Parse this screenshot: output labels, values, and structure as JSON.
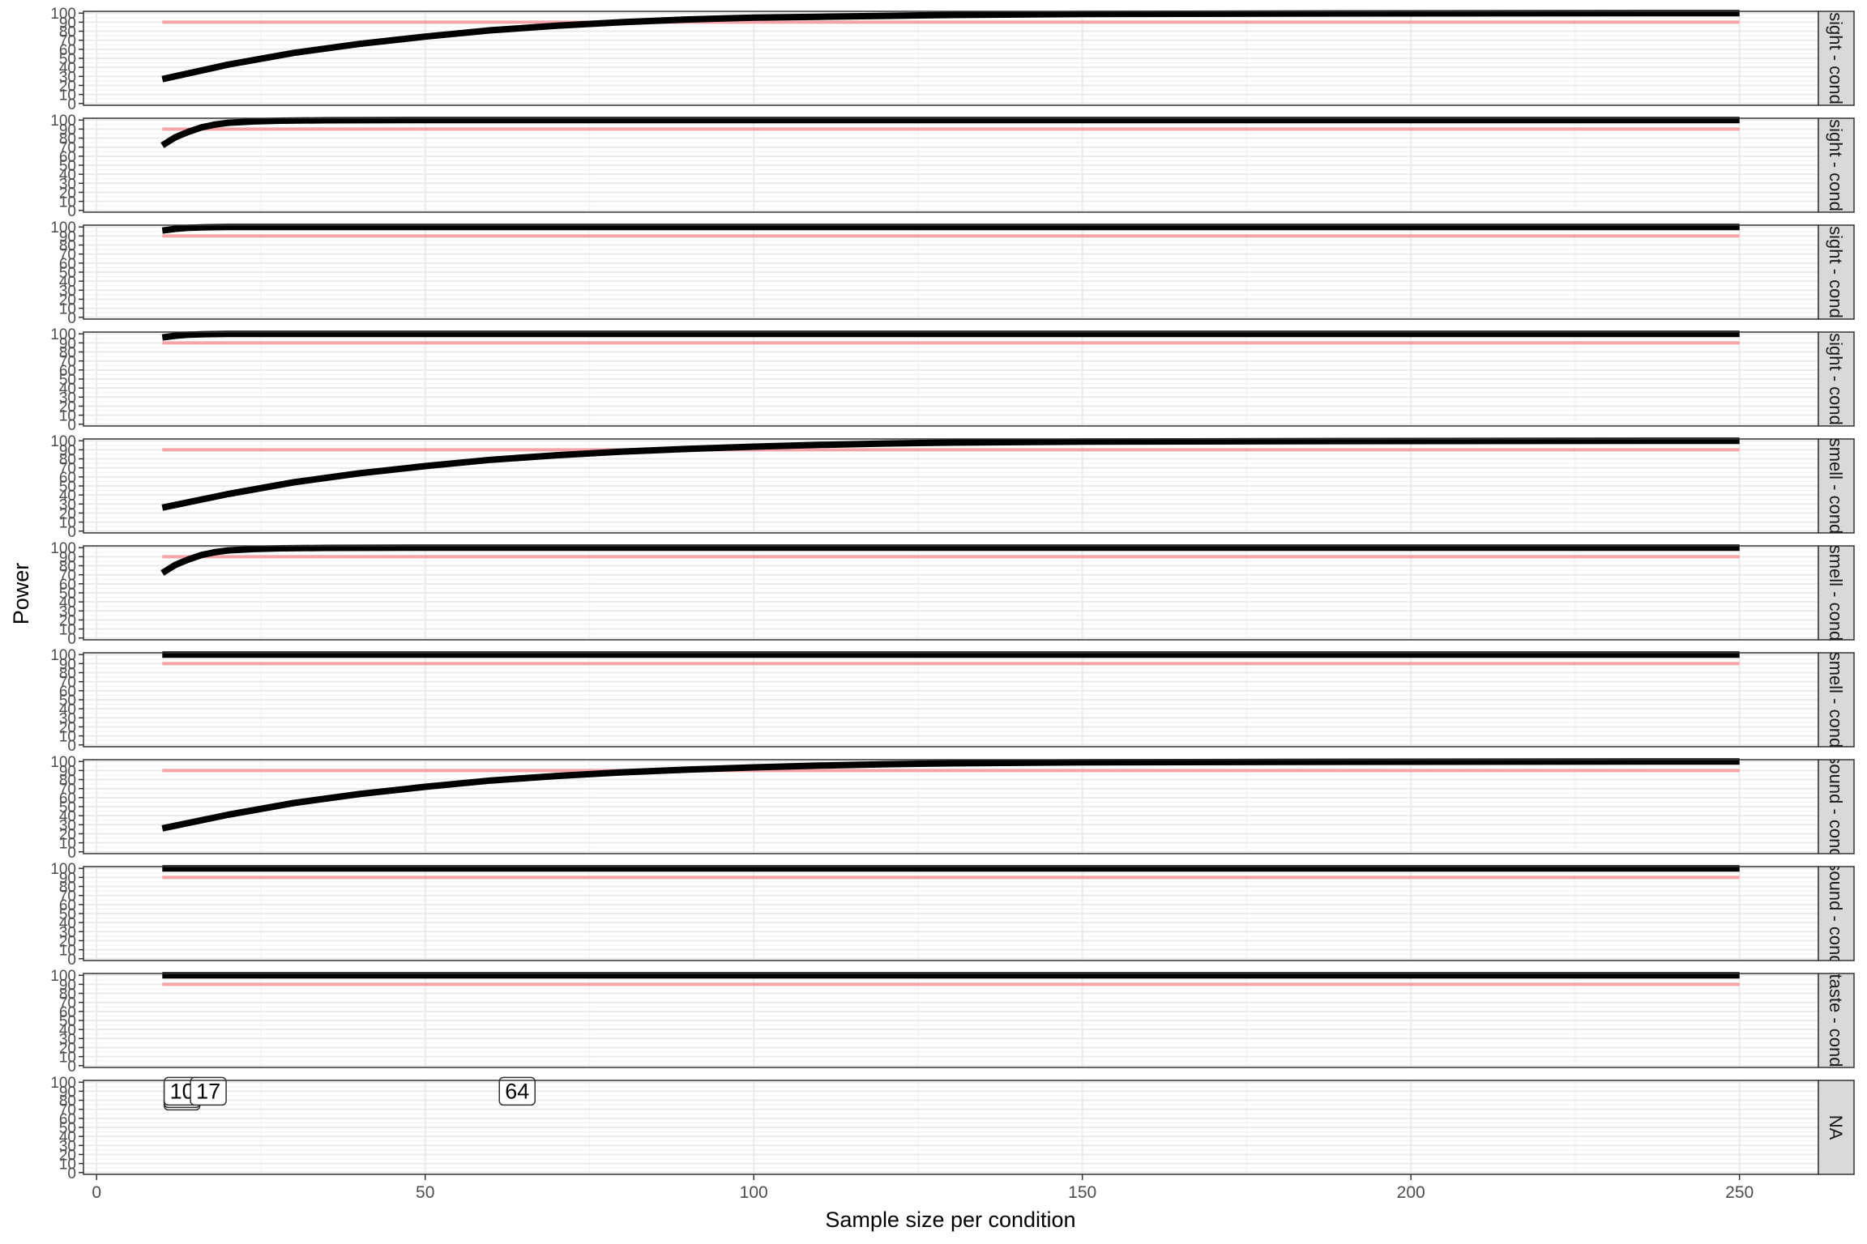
{
  "chart_data": {
    "type": "line",
    "title": "",
    "xlabel": "Sample size per condition",
    "ylabel": "Power",
    "xlim": [
      -2,
      262
    ],
    "ylim": [
      -2,
      102
    ],
    "x_ticks": [
      0,
      50,
      100,
      150,
      200,
      250
    ],
    "y_ticks": [
      0,
      10,
      20,
      30,
      40,
      50,
      60,
      70,
      80,
      90,
      100
    ],
    "grid": true,
    "colors": {
      "power_curve": "#000000",
      "target_line": "#f4a4a9",
      "strip_fill": "#d9d9d9",
      "panel_border": "#333333",
      "major_grid": "#ebebeb",
      "minor_grid": "#f2f2f2",
      "label_box_stroke": "#333333"
    },
    "target_power": 90,
    "x_range": [
      10,
      250
    ],
    "panels": [
      {
        "strip": "sight - cond",
        "curve": [
          [
            10,
            27
          ],
          [
            20,
            43
          ],
          [
            30,
            56
          ],
          [
            40,
            66
          ],
          [
            50,
            74
          ],
          [
            60,
            81
          ],
          [
            70,
            86
          ],
          [
            80,
            90
          ],
          [
            90,
            93
          ],
          [
            100,
            95
          ],
          [
            110,
            96
          ],
          [
            120,
            97
          ],
          [
            130,
            98
          ],
          [
            150,
            99
          ],
          [
            180,
            99.6
          ],
          [
            250,
            100
          ]
        ]
      },
      {
        "strip": "sight - cond",
        "curve": [
          [
            10,
            72
          ],
          [
            12,
            81
          ],
          [
            14,
            87
          ],
          [
            16,
            92
          ],
          [
            18,
            95
          ],
          [
            20,
            97
          ],
          [
            24,
            98.5
          ],
          [
            28,
            99.3
          ],
          [
            35,
            99.8
          ],
          [
            50,
            100
          ],
          [
            250,
            100
          ]
        ]
      },
      {
        "strip": "sight - cond",
        "curve": [
          [
            10,
            96
          ],
          [
            12,
            98
          ],
          [
            14,
            99
          ],
          [
            16,
            99.6
          ],
          [
            20,
            100
          ],
          [
            250,
            100
          ]
        ]
      },
      {
        "strip": "sight - cond",
        "curve": [
          [
            10,
            96
          ],
          [
            12,
            98
          ],
          [
            14,
            99
          ],
          [
            16,
            99.6
          ],
          [
            20,
            100
          ],
          [
            250,
            100
          ]
        ]
      },
      {
        "strip": "smell - cond",
        "curve": [
          [
            10,
            26
          ],
          [
            20,
            41
          ],
          [
            30,
            54
          ],
          [
            40,
            64
          ],
          [
            50,
            72
          ],
          [
            60,
            79
          ],
          [
            70,
            84
          ],
          [
            80,
            88
          ],
          [
            90,
            91
          ],
          [
            100,
            93.5
          ],
          [
            110,
            95.5
          ],
          [
            120,
            97
          ],
          [
            130,
            98
          ],
          [
            150,
            99
          ],
          [
            180,
            99.6
          ],
          [
            250,
            100
          ]
        ]
      },
      {
        "strip": "smell - cond",
        "curve": [
          [
            10,
            72
          ],
          [
            12,
            81
          ],
          [
            14,
            87
          ],
          [
            16,
            92
          ],
          [
            18,
            95
          ],
          [
            20,
            97
          ],
          [
            24,
            98.5
          ],
          [
            28,
            99.3
          ],
          [
            35,
            99.8
          ],
          [
            50,
            100
          ],
          [
            250,
            100
          ]
        ]
      },
      {
        "strip": "smell - cond",
        "curve": [
          [
            10,
            100
          ],
          [
            250,
            100
          ]
        ]
      },
      {
        "strip": "sound - cond",
        "curve": [
          [
            10,
            26
          ],
          [
            20,
            41
          ],
          [
            30,
            54
          ],
          [
            40,
            64
          ],
          [
            50,
            72
          ],
          [
            60,
            79
          ],
          [
            70,
            84
          ],
          [
            80,
            88
          ],
          [
            90,
            91
          ],
          [
            100,
            93.5
          ],
          [
            110,
            95.5
          ],
          [
            120,
            97
          ],
          [
            130,
            98
          ],
          [
            150,
            99
          ],
          [
            180,
            99.6
          ],
          [
            250,
            100
          ]
        ]
      },
      {
        "strip": "sound - cond",
        "curve": [
          [
            10,
            100
          ],
          [
            250,
            100
          ]
        ]
      },
      {
        "strip": "taste - cond",
        "curve": [
          [
            10,
            100
          ],
          [
            250,
            100
          ]
        ]
      },
      {
        "strip": "NA",
        "curve": []
      }
    ],
    "annotations": [
      {
        "panel": 10,
        "x": 10,
        "y": 90,
        "label": "10"
      },
      {
        "panel": 10,
        "x": 17,
        "y": 90,
        "label": "17"
      },
      {
        "panel": 10,
        "x": 64,
        "y": 90,
        "label": "64"
      }
    ]
  }
}
